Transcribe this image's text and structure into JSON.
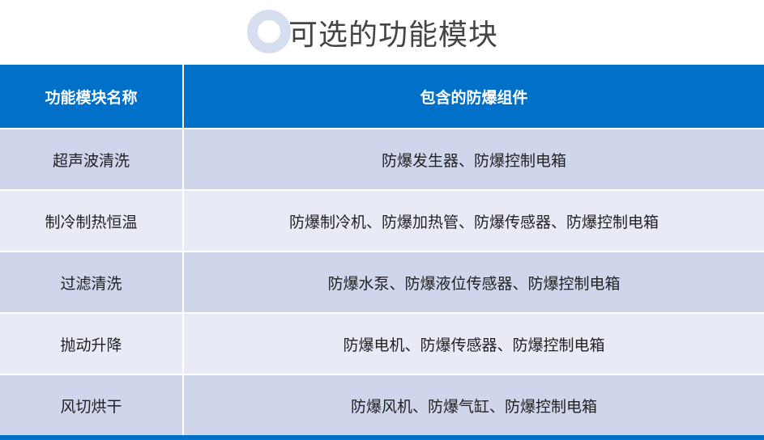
{
  "title": "可选的功能模块",
  "colors": {
    "header": "#0070c8",
    "row_odd": "#cfd5ea",
    "row_even": "#e8ebf5",
    "ring": "#d7def0"
  },
  "table": {
    "headers": [
      "功能模块名称",
      "包含的防爆组件"
    ],
    "rows": [
      [
        "超声波清洗",
        "防爆发生器、防爆控制电箱"
      ],
      [
        "制冷制热恒温",
        "防爆制冷机、防爆加热管、防爆传感器、防爆控制电箱"
      ],
      [
        "过滤清洗",
        "防爆水泵、防爆液位传感器、防爆控制电箱"
      ],
      [
        "抛动升降",
        "防爆电机、防爆传感器、防爆控制电箱"
      ],
      [
        "风切烘干",
        "防爆风机、防爆气缸、防爆控制电箱"
      ]
    ]
  }
}
